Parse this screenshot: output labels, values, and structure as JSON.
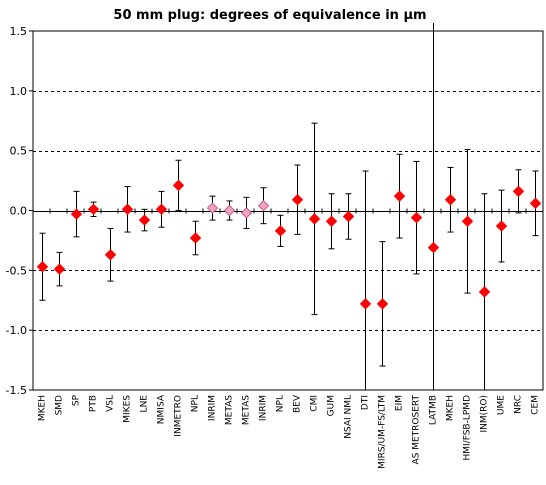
{
  "chart_data": {
    "type": "scatter",
    "title": "50 mm plug: degrees of equivalence in µm",
    "xlabel": "",
    "ylabel": "",
    "ylim": [
      -1.5,
      1.5
    ],
    "yticks": [
      "1.5",
      "1.0",
      "0.5",
      "0.0",
      "-0.5",
      "-1.0",
      "-1.5"
    ],
    "ytick_values": [
      1.5,
      1.0,
      0.5,
      0.0,
      -0.5,
      -1.0,
      -1.5
    ],
    "dashed_gridlines": [
      1.0,
      0.5,
      -0.5,
      -1.0
    ],
    "divider_after_category": "LATMB",
    "colors": {
      "marker": "#ff0000",
      "marker_alt": "#f3a2c2",
      "errorbar": "#000000",
      "grid": "#000000"
    },
    "categories": [
      "MKEH",
      "SMD",
      "SP",
      "PTB",
      "VSL",
      "MIKES",
      "LNE",
      "NMISA",
      "INMETRO",
      "NPL",
      "INRIM",
      "METAS",
      "METAS",
      "INRIM",
      "NPL",
      "BEV",
      "CMI",
      "GUM",
      "NSAI NML",
      "DTI",
      "MIRS/UM-FS/LTM",
      "EIM",
      "AS METROSERT",
      "LATMB",
      "MKEH",
      "HMI/FSB-LPMD",
      "INM(RO)",
      "UME",
      "NRC",
      "CEM"
    ],
    "values": [
      -0.47,
      -0.49,
      -0.03,
      0.01,
      -0.37,
      0.01,
      -0.08,
      0.01,
      0.21,
      -0.23,
      0.02,
      0.0,
      -0.02,
      0.04,
      -0.17,
      0.09,
      -0.07,
      -0.09,
      -0.05,
      -0.78,
      -0.78,
      0.12,
      -0.06,
      -0.31,
      0.09,
      -0.09,
      -0.68,
      -0.13,
      0.16,
      0.06
    ],
    "errors": [
      0.28,
      0.14,
      0.19,
      0.06,
      0.22,
      0.19,
      0.09,
      0.15,
      0.21,
      0.14,
      0.1,
      0.08,
      0.13,
      0.15,
      0.13,
      0.29,
      0.8,
      0.23,
      0.19,
      1.11,
      0.52,
      0.35,
      0.47,
      1.82,
      0.27,
      0.6,
      0.82,
      0.3,
      0.18,
      0.27
    ],
    "marker_styles": [
      "red",
      "red",
      "red",
      "red",
      "red",
      "red",
      "red",
      "red",
      "red",
      "red",
      "pink",
      "pink",
      "pink",
      "pink",
      "red",
      "red",
      "red",
      "red",
      "red",
      "red",
      "red",
      "red",
      "red",
      "red",
      "red",
      "red",
      "red",
      "red",
      "red",
      "red"
    ]
  }
}
